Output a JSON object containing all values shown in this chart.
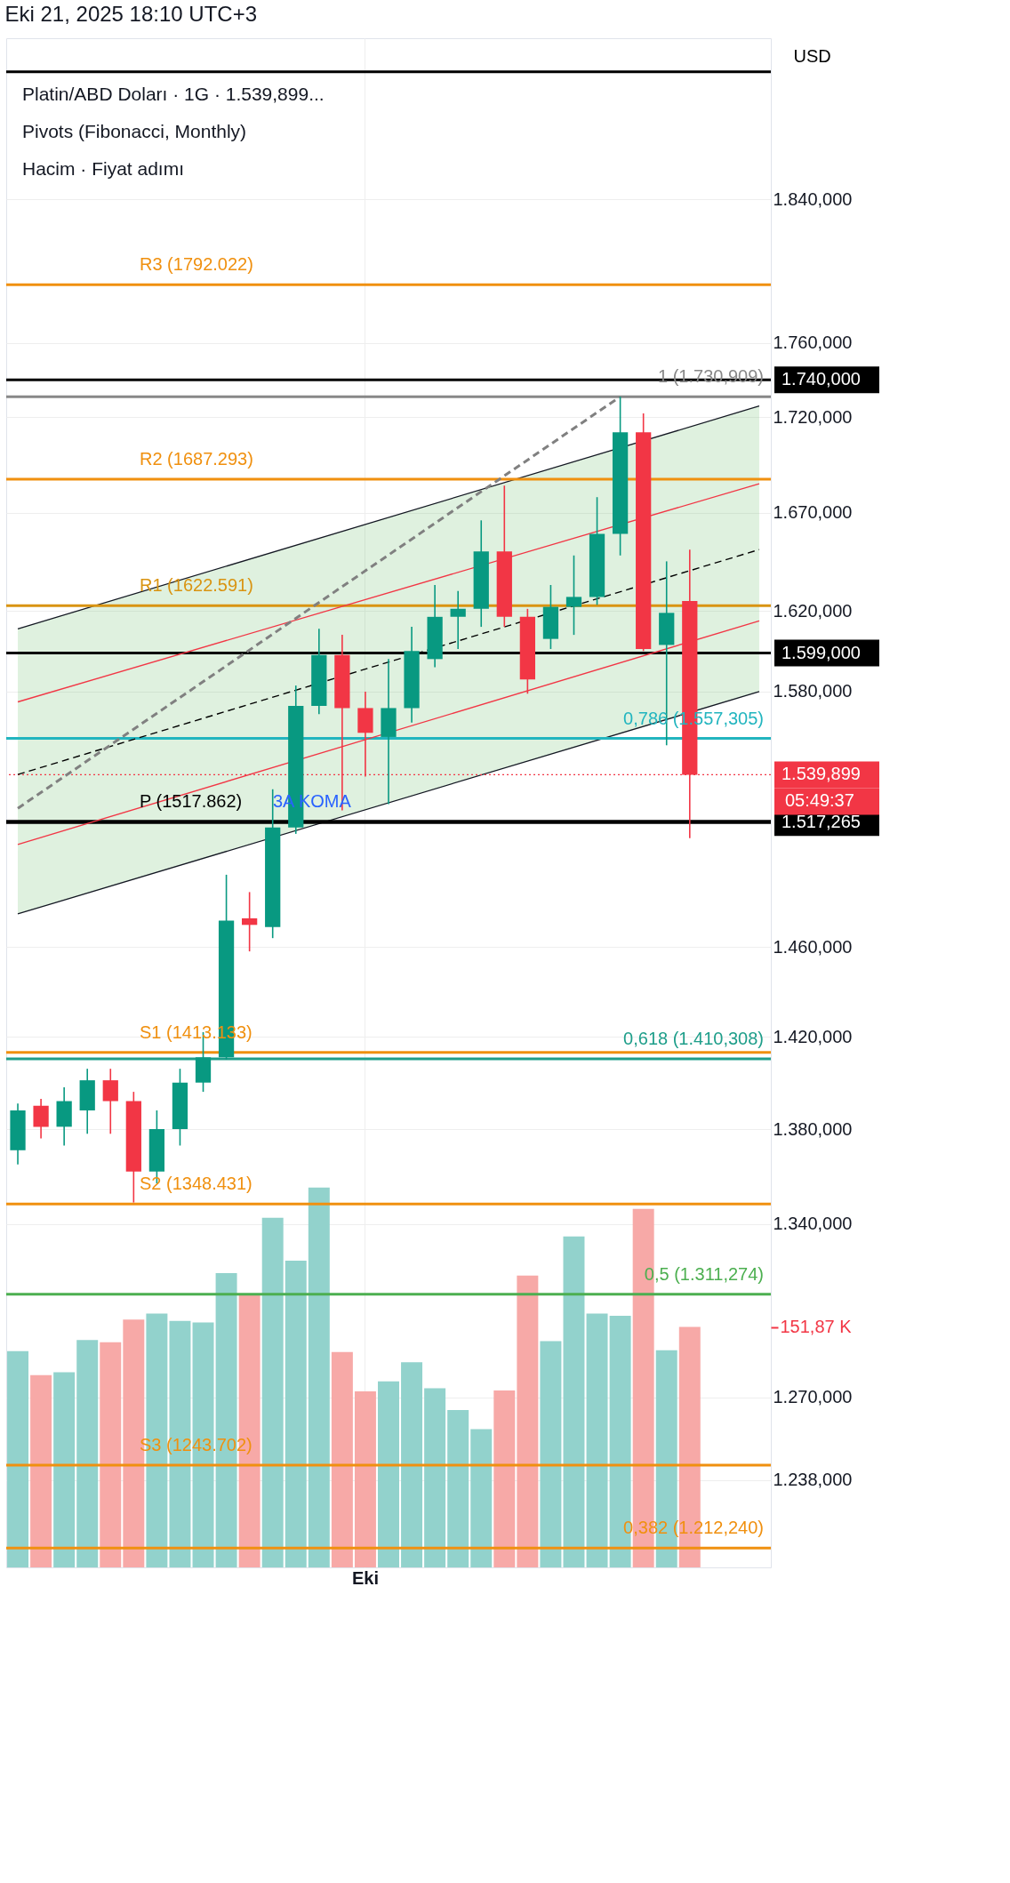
{
  "chart_data": {
    "type": "candlestick",
    "title": "Platin/ABD Doları · 1G · 1.539,899...",
    "subtitle": "Eki 21, 2025 18:10 UTC+3",
    "ylabel": "USD",
    "log": true,
    "grid": true,
    "categories": [
      null,
      null,
      null,
      null,
      null,
      null,
      null,
      null,
      null,
      null,
      null,
      null,
      null,
      null,
      null,
      "Eki",
      null,
      null,
      null,
      null,
      null,
      null,
      null,
      null,
      null,
      null,
      null,
      null,
      null,
      null,
      null,
      null,
      null
    ],
    "ylim": [
      1205,
      1934
    ],
    "yticks": [
      {
        "value": 1840,
        "label": "1.840,000"
      },
      {
        "value": 1760,
        "label": "1.760,000"
      },
      {
        "value": 1720,
        "label": "1.720,000"
      },
      {
        "value": 1670,
        "label": "1.670,000"
      },
      {
        "value": 1620,
        "label": "1.620,000"
      },
      {
        "value": 1580,
        "label": "1.580,000"
      },
      {
        "value": 1460,
        "label": "1.460,000"
      },
      {
        "value": 1420,
        "label": "1.420,000"
      },
      {
        "value": 1380,
        "label": "1.380,000"
      },
      {
        "value": 1340,
        "label": "1.340,000"
      },
      {
        "value": 1270,
        "label": "1.270,000"
      },
      {
        "value": 1238,
        "label": "1.238,000"
      }
    ],
    "y2lim": [
      0,
      966
    ],
    "y2ticks": [
      {
        "value": 151.87,
        "label": "151,87 K"
      }
    ],
    "ohlc": [
      [
        1371,
        1391,
        1365,
        1388
      ],
      [
        1390,
        1393,
        1376,
        1381
      ],
      [
        1381,
        1398,
        1373,
        1392
      ],
      [
        1388,
        1406,
        1378,
        1401
      ],
      [
        1401,
        1406,
        1378,
        1392
      ],
      [
        1392,
        1396,
        1349,
        1362
      ],
      [
        1362,
        1388,
        1357,
        1380
      ],
      [
        1380,
        1406,
        1373,
        1400
      ],
      [
        1400,
        1422,
        1396,
        1411
      ],
      [
        1411,
        1493,
        1410,
        1472
      ],
      [
        1473,
        1485,
        1458,
        1470
      ],
      [
        1469,
        1533,
        1464,
        1515
      ],
      [
        1515,
        1583,
        1512,
        1573
      ],
      [
        1573,
        1611,
        1569,
        1598
      ],
      [
        1598,
        1608,
        1523,
        1572
      ],
      [
        1572,
        1580,
        1539,
        1560
      ],
      [
        1558,
        1596,
        1526,
        1572
      ],
      [
        1572,
        1612,
        1565,
        1600
      ],
      [
        1596,
        1633,
        1592,
        1617
      ],
      [
        1617,
        1630,
        1601,
        1621
      ],
      [
        1621,
        1666,
        1612,
        1650
      ],
      [
        1650,
        1684,
        1612,
        1617
      ],
      [
        1617,
        1621,
        1579,
        1586
      ],
      [
        1606,
        1633,
        1601,
        1622
      ],
      [
        1622,
        1648,
        1608,
        1627
      ],
      [
        1627,
        1678,
        1623,
        1659
      ],
      [
        1659,
        1731,
        1648,
        1712
      ],
      [
        1712,
        1722,
        1600,
        1601
      ],
      [
        1603,
        1645,
        1554,
        1619
      ],
      [
        1625,
        1651,
        1510,
        1539.899
      ],
      null,
      null,
      null
    ],
    "colors": [
      "#089981",
      "#f23645",
      "#089981",
      "#089981",
      "#f23645",
      "#f23645",
      "#089981",
      "#089981",
      "#089981",
      "#089981",
      "#f23645",
      "#089981",
      "#089981",
      "#089981",
      "#f23645",
      "#f23645",
      "#089981",
      "#089981",
      "#089981",
      "#089981",
      "#089981",
      "#f23645",
      "#f23645",
      "#089981",
      "#089981",
      "#089981",
      "#089981",
      "#f23645",
      "#089981",
      "#f23645",
      null,
      null,
      null
    ],
    "series": [
      {
        "type": "bar",
        "axis": "y2",
        "values": [
          136.6,
          121.4,
          123.3,
          143.6,
          142.3,
          156.6,
          160.4,
          155.7,
          154.7,
          185.9,
          172.5,
          220.8,
          193.8,
          239.9,
          136.0,
          111.2,
          117.5,
          129.6,
          113.1,
          99.4,
          87.4,
          111.8,
          184.3,
          143.0,
          209.0,
          160.4,
          158.9,
          226.5,
          137.2,
          151.87,
          null,
          null,
          null
        ],
        "colors": [
          "#92d2cc",
          "#f7a9a7",
          "#92d2cc",
          "#92d2cc",
          "#f7a9a7",
          "#f7a9a7",
          "#92d2cc",
          "#92d2cc",
          "#92d2cc",
          "#92d2cc",
          "#f7a9a7",
          "#92d2cc",
          "#92d2cc",
          "#92d2cc",
          "#f7a9a7",
          "#f7a9a7",
          "#92d2cc",
          "#92d2cc",
          "#92d2cc",
          "#92d2cc",
          "#92d2cc",
          "#f7a9a7",
          "#f7a9a7",
          "#92d2cc",
          "#92d2cc",
          "#92d2cc",
          "#92d2cc",
          "#f7a9a7",
          "#92d2cc",
          "#f7a9a7",
          null,
          null,
          null
        ]
      },
      {
        "type": "line",
        "color": "#000000",
        "line_style": "dashed",
        "values": [
          1540,
          null,
          null,
          null,
          null,
          null,
          null,
          null,
          null,
          null,
          null,
          null,
          null,
          null,
          null,
          null,
          null,
          null,
          null,
          null,
          null,
          null,
          null,
          null,
          null,
          null,
          null,
          null,
          null,
          null,
          null,
          null,
          1651
        ],
        "lower": [
          1475,
          null,
          null,
          null,
          null,
          null,
          null,
          null,
          null,
          null,
          null,
          null,
          null,
          null,
          null,
          null,
          null,
          null,
          null,
          null,
          null,
          null,
          null,
          null,
          null,
          null,
          null,
          null,
          null,
          null,
          null,
          null,
          1580
        ],
        "upper": [
          1611,
          null,
          null,
          null,
          null,
          null,
          null,
          null,
          null,
          null,
          null,
          null,
          null,
          null,
          null,
          null,
          null,
          null,
          null,
          null,
          null,
          null,
          null,
          null,
          null,
          null,
          null,
          null,
          null,
          null,
          null,
          null,
          1726
        ]
      },
      {
        "type": "line",
        "color": "#f23645",
        "line_style": "solid",
        "values": [
          1575,
          null,
          null,
          null,
          null,
          null,
          null,
          null,
          null,
          null,
          null,
          null,
          null,
          null,
          null,
          null,
          null,
          null,
          null,
          null,
          null,
          null,
          null,
          null,
          null,
          null,
          null,
          null,
          null,
          null,
          null,
          null,
          1685
        ]
      },
      {
        "type": "line",
        "color": "#f23645",
        "line_style": "solid",
        "values": [
          1507,
          null,
          null,
          null,
          null,
          null,
          null,
          null,
          null,
          null,
          null,
          null,
          null,
          null,
          null,
          null,
          null,
          null,
          null,
          null,
          null,
          null,
          null,
          null,
          null,
          null,
          null,
          null,
          null,
          null,
          null,
          null,
          1615
        ]
      },
      {
        "type": "line",
        "color": "#808080",
        "line_style": "dashed",
        "values": [
          1524,
          null,
          null,
          null,
          null,
          null,
          null,
          null,
          null,
          null,
          null,
          null,
          null,
          null,
          null,
          null,
          null,
          null,
          null,
          null,
          null,
          null,
          null,
          null,
          null,
          null,
          1731,
          null,
          null,
          null,
          null,
          null,
          null
        ]
      }
    ],
    "ref_lines": [
      {
        "axis": "y",
        "value": 1792.022,
        "label": "R3 (1792.022)",
        "color": "#f0900f"
      },
      {
        "axis": "y",
        "value": 1687.293,
        "label": "R2 (1687.293)",
        "color": "#f0900f"
      },
      {
        "axis": "y",
        "value": 1622.591,
        "label": "R1 (1622.591)",
        "color": "#d99412"
      },
      {
        "axis": "y",
        "value": 1517.862,
        "label": "P (1517.862)",
        "color": "#000000"
      },
      {
        "axis": "y",
        "value": 1413.133,
        "label": "S1 (1413.133)",
        "color": "#f0900f"
      },
      {
        "axis": "y",
        "value": 1348.431,
        "label": "S2 (1348.431)",
        "color": "#f0900f"
      },
      {
        "axis": "y",
        "value": 1243.702,
        "label": "S3 (1243.702)",
        "color": "#f0900f"
      },
      {
        "axis": "y",
        "value": 1730.909,
        "label": "1 (1.730,909)",
        "color": "#888888"
      },
      {
        "axis": "y",
        "value": 1557.305,
        "label": "0,786 (1.557,305)",
        "color": "#22b5bf"
      },
      {
        "axis": "y",
        "value": 1410.308,
        "label": "0,618 (1.410,308)",
        "color": "#1e9e8a"
      },
      {
        "axis": "y",
        "value": 1311.274,
        "label": "0,5 (1.311,274)",
        "color": "#4caf50"
      },
      {
        "axis": "y",
        "value": 1212.24,
        "label": "0,382 (1.212,240)",
        "color": "#f0900f"
      },
      {
        "axis": "y",
        "value": 1740,
        "label": "1.740,000",
        "color": "#000000"
      },
      {
        "axis": "y",
        "value": 1599,
        "label": "1.599,000",
        "color": "#000000"
      },
      {
        "axis": "y",
        "value": 1517.265,
        "label": "1.517,265",
        "color": "#000000"
      },
      {
        "axis": "y",
        "value": 1539.899,
        "label": "1.539,899",
        "color": "#f23645",
        "line_style": "dotted"
      },
      {
        "axis": "y",
        "value": 1914,
        "label": null,
        "color": "#000000"
      }
    ],
    "annotations": [
      "Pivots (Fibonacci, Monthly)",
      "Hacim · Fiyat adımı",
      "05:49:37",
      "3A KOMA"
    ]
  }
}
